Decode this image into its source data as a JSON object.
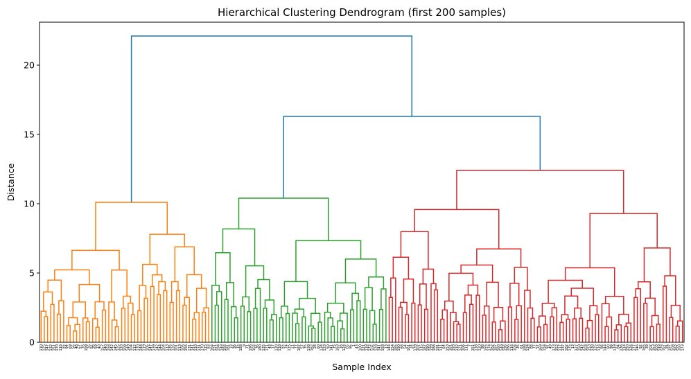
{
  "chart_data": {
    "type": "dendrogram",
    "title": "Hierarchical Clustering Dendrogram (first 200 samples)",
    "xlabel": "Sample Index",
    "ylabel": "Distance",
    "ylim": [
      0,
      23.1
    ],
    "yticks": [
      0,
      5,
      10,
      15,
      20
    ],
    "leaf_count": 200,
    "grid": false,
    "colors": {
      "cluster_1": "#ff7f0e",
      "cluster_2": "#2ca02c",
      "cluster_3": "#d62728",
      "above_threshold": "#1f77b4"
    },
    "clusters": [
      {
        "name": "cluster_1",
        "leaves": 53,
        "height": 10.1
      },
      {
        "name": "cluster_2",
        "leaves": 55,
        "height": 10.4
      },
      {
        "name": "cluster_3",
        "leaves": 92,
        "height": 12.4
      }
    ],
    "top_links": [
      {
        "joins": [
          "cluster_2",
          "cluster_3"
        ],
        "height": 16.3
      },
      {
        "joins": [
          "cluster_1",
          "cluster_2+cluster_3"
        ],
        "height": 22.1
      }
    ],
    "leaf_labels": [
      "110",
      "125",
      "147",
      "132",
      "151",
      "170",
      "116",
      "55",
      "94",
      "69",
      "56",
      "48",
      "67",
      "76",
      "199",
      "26",
      "96",
      "59",
      "40",
      "157",
      "140",
      "158",
      "142",
      "145",
      "125",
      "120",
      "109",
      "149",
      "104",
      "112",
      "170",
      "148",
      "119",
      "105",
      "147",
      "139",
      "142",
      "144",
      "104",
      "113",
      "135",
      "126",
      "101",
      "113",
      "105",
      "156",
      "131",
      "141",
      "110",
      "131",
      "170",
      "115",
      "83",
      "164",
      "121",
      "194",
      "148",
      "156",
      "181",
      "33",
      "36",
      "15",
      "188",
      "9",
      "71",
      "196",
      "102",
      "36",
      "180",
      "135",
      "171",
      "43",
      "17",
      "130",
      "118",
      "55",
      "74",
      "175",
      "21",
      "77",
      "187",
      "57",
      "35",
      "138",
      "162",
      "28",
      "60",
      "134",
      "133",
      "50",
      "141",
      "75",
      "183",
      "16",
      "124",
      "65",
      "95",
      "1",
      "43",
      "100",
      "121",
      "118",
      "172",
      "105",
      "128",
      "141",
      "158",
      "13",
      "144",
      "154",
      "185",
      "190",
      "68",
      "54",
      "161",
      "24",
      "139",
      "107",
      "115",
      "187",
      "190",
      "199",
      "188",
      "191",
      "111",
      "64",
      "153",
      "181",
      "193",
      "132",
      "121",
      "106",
      "111",
      "7",
      "151",
      "138",
      "120",
      "98",
      "155",
      "174",
      "182",
      "187",
      "160",
      "149",
      "196",
      "186",
      "116",
      "104",
      "35",
      "61",
      "198",
      "134",
      "88",
      "77",
      "57",
      "169",
      "154",
      "97",
      "49",
      "173",
      "152",
      "117",
      "137",
      "182",
      "175",
      "13",
      "127",
      "158",
      "142",
      "103",
      "153",
      "130",
      "125",
      "114",
      "66",
      "144",
      "80",
      "99",
      "119",
      "84",
      "136",
      "114",
      "150",
      "126",
      "177",
      "146",
      "92",
      "165",
      "39",
      "102",
      "163",
      "103",
      "148",
      "167",
      "91",
      "197",
      "108",
      "162",
      "160",
      "173"
    ]
  }
}
